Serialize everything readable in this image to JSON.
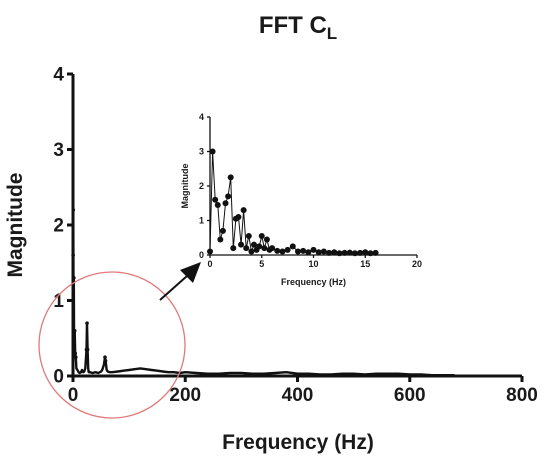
{
  "chart_data": [
    {
      "id": "main",
      "type": "line",
      "title": "FFT C",
      "title_subscript": "L",
      "xlabel": "Frequency (Hz)",
      "ylabel": "Magnitude",
      "xlim": [
        0,
        800
      ],
      "ylim": [
        0,
        4
      ],
      "xticks": [
        "0",
        "200",
        "400",
        "600",
        "800"
      ],
      "yticks": [
        "0",
        "1",
        "2",
        "3",
        "4"
      ],
      "grid": false,
      "line_color": "#111111",
      "series": [
        {
          "x": [
            0,
            0.2,
            0.5,
            1,
            1.5,
            2,
            3,
            4,
            5,
            6,
            8,
            10,
            12,
            14,
            16,
            18,
            20,
            22,
            24,
            25,
            26,
            27,
            28,
            30,
            35,
            40,
            45,
            50,
            52,
            55,
            57,
            58,
            60,
            62,
            65,
            70,
            80,
            90,
            100,
            110,
            120,
            130,
            140,
            150,
            160,
            170,
            180,
            190,
            200,
            220,
            240,
            260,
            280,
            300,
            320,
            340,
            360,
            380,
            400,
            420,
            440,
            460,
            480,
            500,
            520,
            540,
            560,
            580,
            600,
            620,
            640,
            660,
            680
          ],
          "values": [
            3.95,
            1.6,
            2.2,
            0.55,
            1.3,
            0.4,
            0.6,
            0.3,
            0.25,
            0.1,
            0.08,
            0.05,
            0.04,
            0.05,
            0.08,
            0.05,
            0.06,
            0.1,
            0.35,
            0.7,
            0.35,
            0.1,
            0.05,
            0.05,
            0.04,
            0.05,
            0.04,
            0.06,
            0.08,
            0.15,
            0.25,
            0.2,
            0.08,
            0.06,
            0.05,
            0.05,
            0.06,
            0.07,
            0.08,
            0.09,
            0.1,
            0.09,
            0.08,
            0.07,
            0.06,
            0.05,
            0.05,
            0.04,
            0.05,
            0.04,
            0.03,
            0.03,
            0.04,
            0.04,
            0.03,
            0.03,
            0.04,
            0.05,
            0.03,
            0.03,
            0.02,
            0.02,
            0.03,
            0.03,
            0.02,
            0.03,
            0.03,
            0.03,
            0.02,
            0.02,
            0.01,
            0.01,
            0.01
          ]
        }
      ],
      "annotation": {
        "highlight_circle_color": "#e07a7a",
        "arrow_color": "#111111"
      }
    },
    {
      "id": "inset",
      "type": "line",
      "xlabel": "Frequency (Hz)",
      "ylabel": "Magnitude",
      "xlim": [
        0,
        20
      ],
      "ylim": [
        0,
        4
      ],
      "xticks": [
        "0",
        "5",
        "10",
        "15",
        "20"
      ],
      "yticks": [
        "0",
        "1",
        "2",
        "3",
        "4"
      ],
      "grid": false,
      "marker": "circle",
      "series": [
        {
          "x": [
            0,
            0.25,
            0.5,
            0.75,
            1.0,
            1.25,
            1.5,
            1.75,
            2.0,
            2.25,
            2.5,
            2.75,
            3.0,
            3.25,
            3.5,
            3.75,
            4.0,
            4.25,
            4.5,
            4.75,
            5.0,
            5.25,
            5.5,
            5.75,
            6.0,
            6.5,
            7.0,
            7.5,
            8.0,
            8.5,
            9.0,
            9.5,
            10.0,
            10.5,
            11.0,
            11.5,
            12.0,
            12.5,
            13.0,
            13.5,
            14.0,
            14.5,
            15.0,
            15.5,
            16.0
          ],
          "values": [
            0.1,
            3.0,
            1.6,
            1.45,
            0.45,
            0.7,
            1.5,
            1.7,
            2.25,
            0.2,
            1.05,
            1.1,
            0.3,
            1.3,
            0.2,
            0.55,
            0.1,
            0.3,
            0.15,
            0.25,
            0.55,
            0.2,
            0.45,
            0.15,
            0.2,
            0.12,
            0.1,
            0.15,
            0.25,
            0.1,
            0.12,
            0.08,
            0.15,
            0.08,
            0.1,
            0.06,
            0.08,
            0.05,
            0.06,
            0.07,
            0.05,
            0.06,
            0.08,
            0.05,
            0.06
          ]
        }
      ]
    }
  ]
}
